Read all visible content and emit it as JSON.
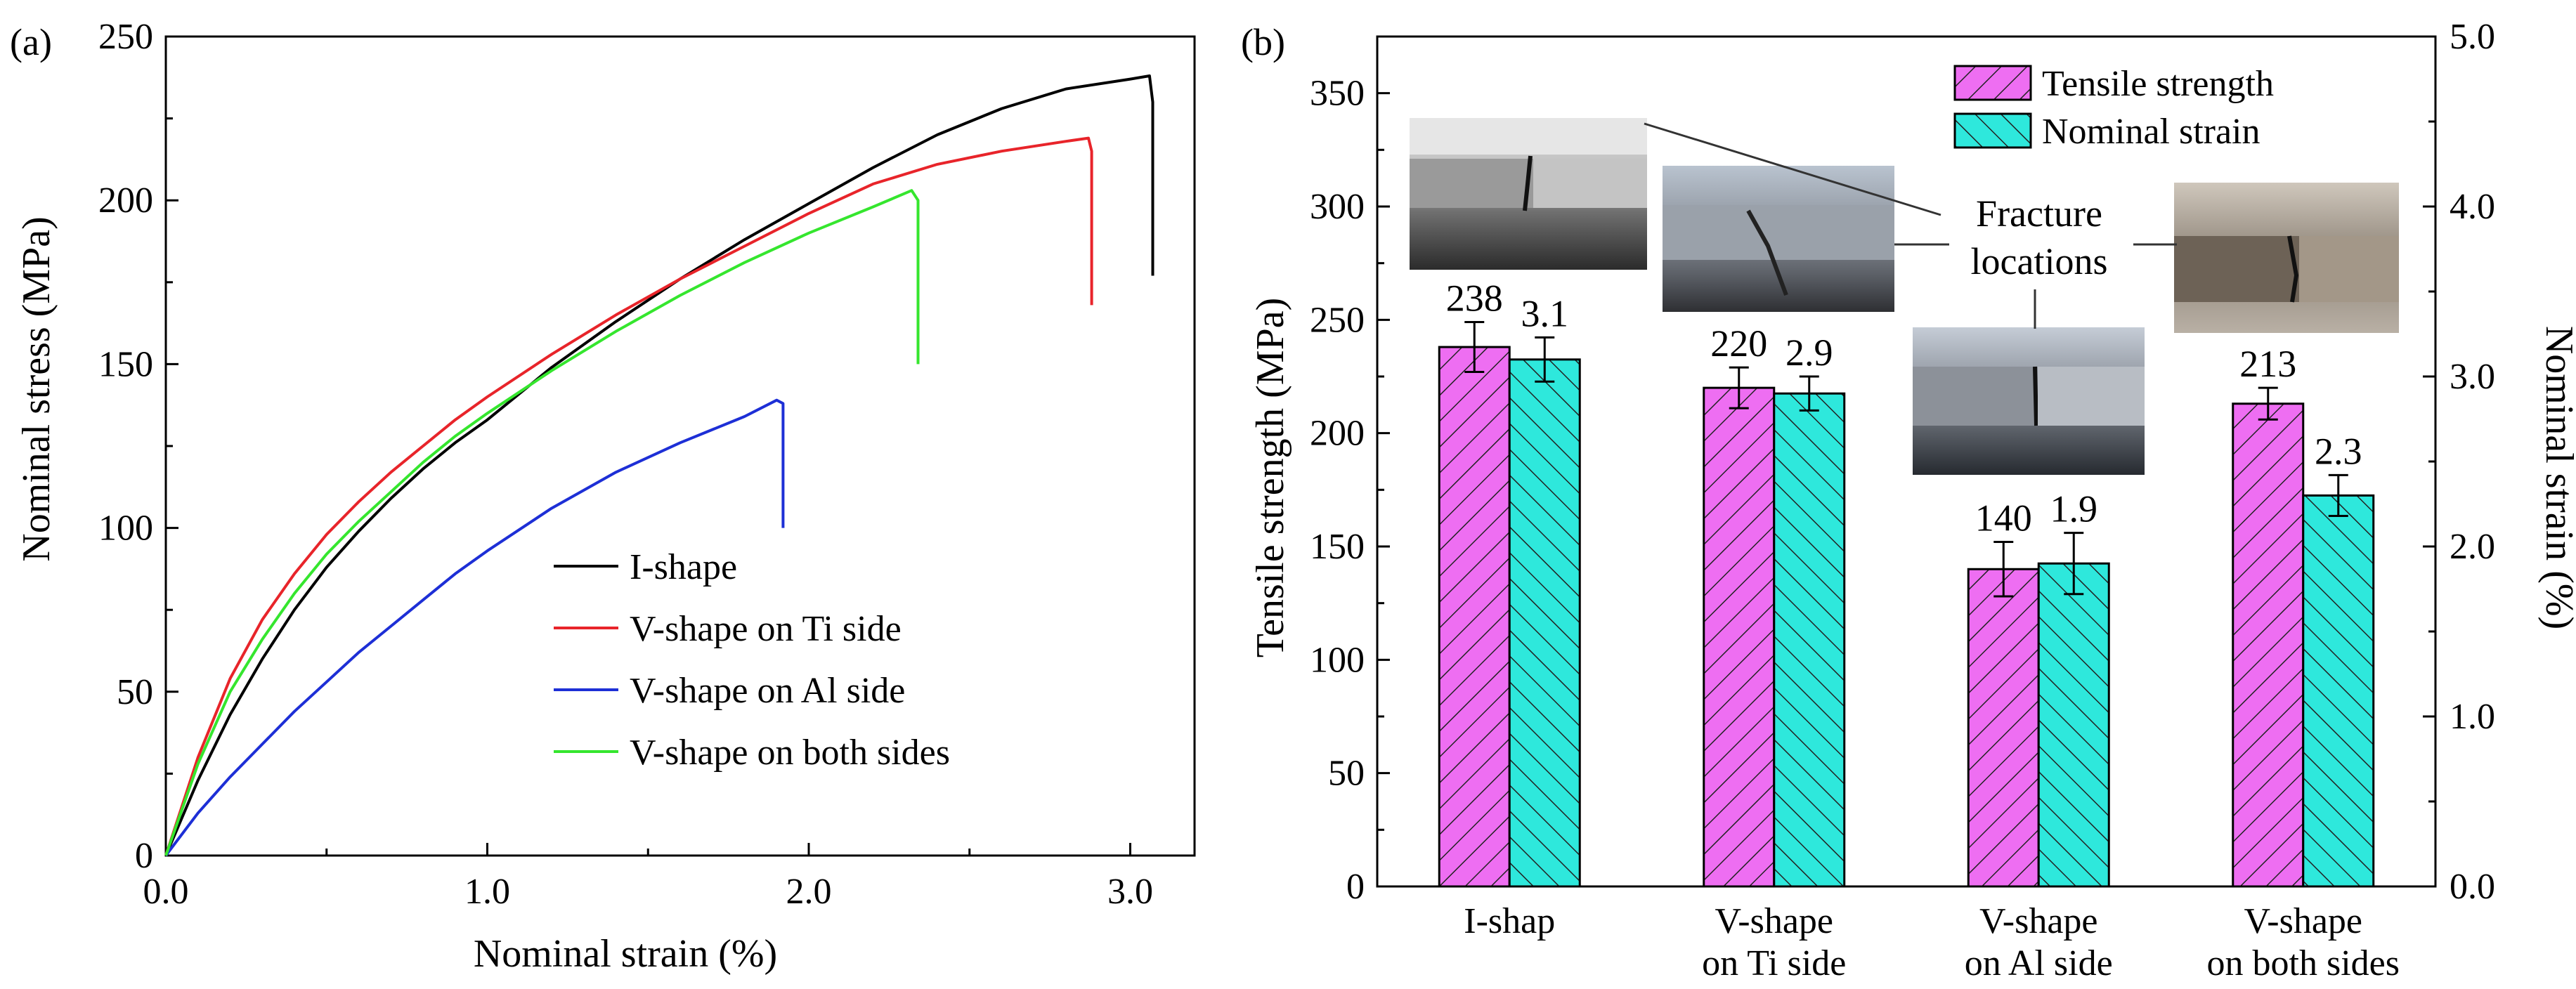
{
  "chart_data": [
    {
      "panel_label": "(a)",
      "type": "line",
      "xlabel": "Nominal strain (%)",
      "ylabel": "Nominal stress (MPa)",
      "xlim": [
        0,
        3.2
      ],
      "ylim": [
        0,
        250
      ],
      "x_ticks": [
        "0.0",
        "1.0",
        "2.0",
        "3.0"
      ],
      "y_ticks": [
        "0",
        "50",
        "100",
        "150",
        "200",
        "250"
      ],
      "legend_position": "bottom-right",
      "series": [
        {
          "name": "I-shape",
          "color": "#000000",
          "x": [
            0,
            0.1,
            0.2,
            0.3,
            0.4,
            0.5,
            0.6,
            0.7,
            0.8,
            0.9,
            1.0,
            1.2,
            1.4,
            1.6,
            1.8,
            2.0,
            2.2,
            2.4,
            2.6,
            2.8,
            3.0,
            3.06,
            3.07,
            3.07
          ],
          "y": [
            0,
            23,
            43,
            60,
            75,
            88,
            99,
            109,
            118,
            126,
            133,
            149,
            163,
            176,
            188,
            199,
            210,
            220,
            228,
            234,
            237,
            238,
            230,
            177
          ]
        },
        {
          "name": "V-shape on Ti side",
          "color": "#e8242a",
          "x": [
            0,
            0.1,
            0.2,
            0.3,
            0.4,
            0.5,
            0.6,
            0.7,
            0.8,
            0.9,
            1.0,
            1.2,
            1.4,
            1.6,
            1.8,
            2.0,
            2.2,
            2.4,
            2.6,
            2.8,
            2.87,
            2.88,
            2.88
          ],
          "y": [
            0,
            30,
            54,
            72,
            86,
            98,
            108,
            117,
            125,
            133,
            140,
            153,
            165,
            176,
            186,
            196,
            205,
            211,
            215,
            218,
            219,
            215,
            168
          ]
        },
        {
          "name": "V-shape on Al side",
          "color": "#1d2fd6",
          "x": [
            0,
            0.1,
            0.2,
            0.3,
            0.4,
            0.5,
            0.6,
            0.7,
            0.8,
            0.9,
            1.0,
            1.2,
            1.4,
            1.6,
            1.8,
            1.9,
            1.92,
            1.92
          ],
          "y": [
            0,
            13,
            24,
            34,
            44,
            53,
            62,
            70,
            78,
            86,
            93,
            106,
            117,
            126,
            134,
            139,
            138,
            100
          ]
        },
        {
          "name": "V-shape on both sides",
          "color": "#35e62e",
          "x": [
            0,
            0.1,
            0.2,
            0.3,
            0.4,
            0.5,
            0.6,
            0.7,
            0.8,
            0.9,
            1.0,
            1.2,
            1.4,
            1.6,
            1.8,
            2.0,
            2.2,
            2.32,
            2.34,
            2.34
          ],
          "y": [
            0,
            28,
            50,
            66,
            80,
            92,
            102,
            111,
            120,
            128,
            135,
            148,
            160,
            171,
            181,
            190,
            198,
            203,
            200,
            150
          ]
        }
      ]
    },
    {
      "panel_label": "(b)",
      "type": "bar",
      "ylabel": "Tensile strength (MPa)",
      "y2label": "Nominal strain (%)",
      "ylim": [
        0,
        375
      ],
      "y2lim": [
        0,
        5.0
      ],
      "y_ticks": [
        "0",
        "50",
        "100",
        "150",
        "200",
        "250",
        "300",
        "350"
      ],
      "y2_ticks": [
        "0.0",
        "1.0",
        "2.0",
        "3.0",
        "4.0",
        "5.0"
      ],
      "categories": [
        [
          "I-shap"
        ],
        [
          "V-shape",
          "on Ti side"
        ],
        [
          "V-shape",
          "on Al side"
        ],
        [
          "V-shape",
          "on both sides"
        ]
      ],
      "legend_position": "top-right",
      "series": [
        {
          "name": "Tensile strength",
          "axis": "left",
          "color": "#ee6ef2",
          "values": [
            238,
            220,
            140,
            213
          ],
          "errors": [
            11,
            9,
            12,
            7
          ],
          "value_labels": [
            "238",
            "220",
            "140",
            "213"
          ]
        },
        {
          "name": "Nominal strain",
          "axis": "right",
          "color": "#2ee8dc",
          "values": [
            3.1,
            2.9,
            1.9,
            2.3
          ],
          "errors": [
            0.13,
            0.1,
            0.18,
            0.12
          ],
          "value_labels": [
            "3.1",
            "2.9",
            "1.9",
            "2.3"
          ]
        }
      ],
      "annotation": {
        "line1": "Fracture",
        "line2": "locations"
      },
      "photo_insets": [
        "I-shape fracture photo",
        "V-shape on Ti side fracture photo",
        "V-shape on Al side fracture photo",
        "V-shape on both sides fracture photo"
      ]
    }
  ]
}
